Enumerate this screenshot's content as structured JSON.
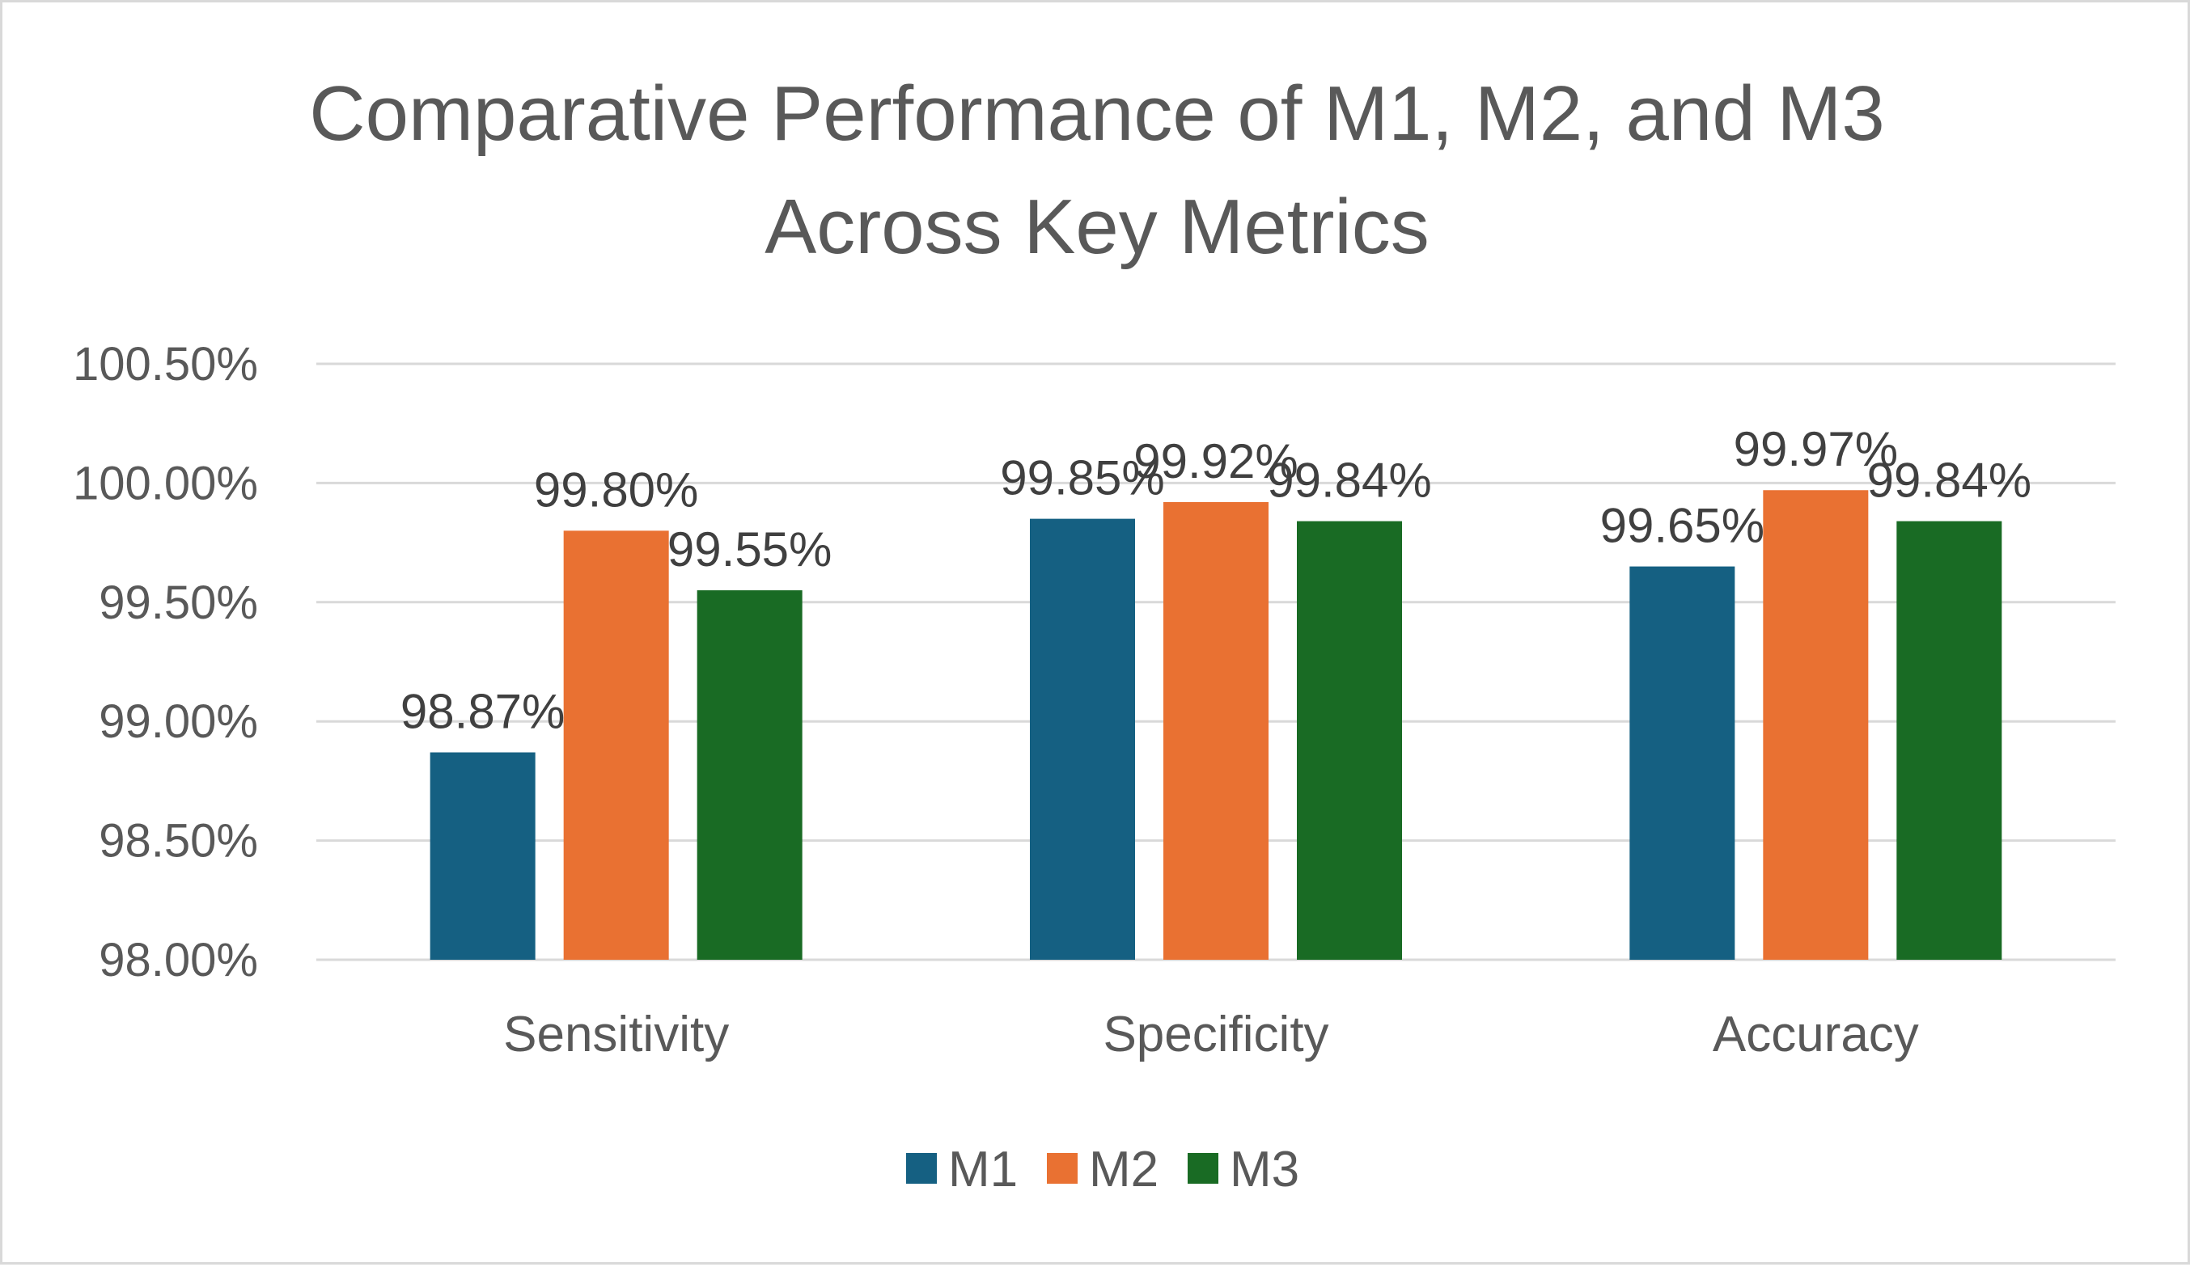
{
  "chart_data": {
    "type": "bar",
    "title": "Comparative Performance of M1, M2, and M3 Across Key Metrics",
    "title_lines": [
      "Comparative Performance of M1, M2, and M3",
      "Across Key Metrics"
    ],
    "categories": [
      "Sensitivity",
      "Specificity",
      "Accuracy"
    ],
    "series": [
      {
        "name": "M1",
        "color": "#156082",
        "values": [
          98.87,
          99.85,
          99.65
        ],
        "labels": [
          "98.87%",
          "99.85%",
          "99.65%"
        ]
      },
      {
        "name": "M2",
        "color": "#E97132",
        "values": [
          99.8,
          99.92,
          99.97
        ],
        "labels": [
          "99.80%",
          "99.92%",
          "99.97%"
        ]
      },
      {
        "name": "M3",
        "color": "#196B24",
        "values": [
          99.55,
          99.84,
          99.84
        ],
        "labels": [
          "99.55%",
          "99.84%",
          "99.84%"
        ]
      }
    ],
    "yticks": [
      98.0,
      98.5,
      99.0,
      99.5,
      100.0,
      100.5
    ],
    "ytick_labels": [
      "98.00%",
      "98.50%",
      "99.00%",
      "99.50%",
      "100.00%",
      "100.50%"
    ],
    "ylim": [
      98.0,
      100.5
    ],
    "xlabel": "",
    "ylabel": "",
    "grid": true,
    "legend_position": "bottom",
    "gridline_color": "#d9d9d9",
    "text_color": "#595959"
  }
}
